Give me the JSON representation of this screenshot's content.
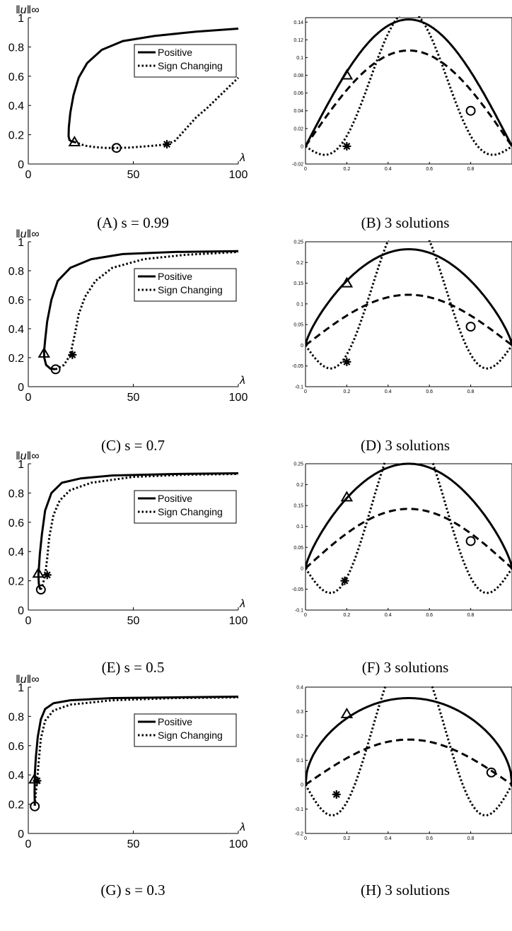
{
  "chart_data": [
    {
      "type": "line",
      "caption": "(A) s = 0.99",
      "ylabel": "‖u‖∞",
      "xlabel": "λ",
      "xlim": [
        0,
        100
      ],
      "ylim": [
        0,
        1
      ],
      "xticks": [
        "0",
        "50",
        "100"
      ],
      "yticks": [
        "0",
        "0.2",
        "0.4",
        "0.6",
        "0.8",
        "1"
      ],
      "legend": {
        "placement": "top-right",
        "entries": [
          "Positive",
          "Sign Changing"
        ]
      },
      "series": [
        {
          "name": "Positive",
          "style": "solid",
          "x": [
            100,
            80,
            60,
            45,
            35,
            28,
            24,
            21.5,
            20,
            19.3,
            19.2,
            19.6,
            20.4,
            22
          ],
          "y": [
            0.925,
            0.905,
            0.875,
            0.84,
            0.78,
            0.69,
            0.59,
            0.47,
            0.35,
            0.25,
            0.19,
            0.165,
            0.155,
            0.15
          ]
        },
        {
          "name": "Sign Changing",
          "style": "dotted",
          "x": [
            22,
            27,
            32,
            37,
            42,
            48,
            55,
            62,
            66,
            70,
            75,
            80,
            85,
            90,
            95,
            100
          ],
          "y": [
            0.15,
            0.125,
            0.115,
            0.11,
            0.11,
            0.112,
            0.12,
            0.128,
            0.135,
            0.16,
            0.24,
            0.32,
            0.38,
            0.45,
            0.52,
            0.59
          ]
        }
      ],
      "markers": [
        {
          "symbol": "triangle",
          "x": 22,
          "y": 0.15
        },
        {
          "symbol": "circle",
          "x": 42,
          "y": 0.11
        },
        {
          "symbol": "star",
          "x": 66,
          "y": 0.135
        }
      ]
    },
    {
      "type": "line",
      "caption": "(B) 3 solutions",
      "xlim": [
        0,
        1
      ],
      "ylim": [
        -0.02,
        0.145
      ],
      "xticks": [
        "0",
        "0.2",
        "0.4",
        "0.6",
        "0.8"
      ],
      "yticks": [
        "-0.02",
        "0",
        "0.02",
        "0.04",
        "0.06",
        "0.08",
        "0.1",
        "0.12",
        "0.14"
      ],
      "series": [
        {
          "style": "solid",
          "amp": 0.143,
          "shape": "positive"
        },
        {
          "style": "dashed",
          "amp": 0.108,
          "shape": "positive"
        },
        {
          "style": "dotted",
          "amp": 0.153,
          "offset": -0.021,
          "shape": "sign-changing"
        }
      ],
      "markers": [
        {
          "symbol": "triangle",
          "x": 0.2,
          "y": 0.08
        },
        {
          "symbol": "circle",
          "x": 0.8,
          "y": 0.04
        },
        {
          "symbol": "star",
          "x": 0.2,
          "y": 0.0
        }
      ]
    },
    {
      "type": "line",
      "caption": "(C) s = 0.7",
      "ylabel": "‖u‖∞",
      "xlabel": "λ",
      "xlim": [
        0,
        100
      ],
      "ylim": [
        0,
        1
      ],
      "xticks": [
        "0",
        "50",
        "100"
      ],
      "yticks": [
        "0",
        "0.2",
        "0.4",
        "0.6",
        "0.8",
        "1"
      ],
      "legend": {
        "placement": "top-right",
        "entries": [
          "Positive",
          "Sign Changing"
        ]
      },
      "series": [
        {
          "name": "Positive",
          "style": "solid",
          "x": [
            100,
            70,
            45,
            30,
            20,
            14,
            11,
            9,
            8,
            7.5,
            7.6,
            8.5,
            10.5,
            13
          ],
          "y": [
            0.935,
            0.93,
            0.915,
            0.88,
            0.82,
            0.73,
            0.6,
            0.45,
            0.32,
            0.24,
            0.2,
            0.15,
            0.125,
            0.12
          ]
        },
        {
          "name": "Sign Changing",
          "style": "dotted",
          "x": [
            13,
            17,
            20,
            22,
            24,
            27,
            32,
            40,
            55,
            75,
            100
          ],
          "y": [
            0.12,
            0.15,
            0.22,
            0.35,
            0.5,
            0.62,
            0.73,
            0.82,
            0.88,
            0.91,
            0.93
          ]
        }
      ],
      "markers": [
        {
          "symbol": "triangle",
          "x": 7.5,
          "y": 0.23
        },
        {
          "symbol": "circle",
          "x": 13,
          "y": 0.12
        },
        {
          "symbol": "star",
          "x": 21,
          "y": 0.22
        }
      ]
    },
    {
      "type": "line",
      "caption": "(D) 3 solutions",
      "xlim": [
        0,
        1
      ],
      "ylim": [
        -0.1,
        0.25
      ],
      "xticks": [
        "0",
        "0.2",
        "0.4",
        "0.6",
        "0.8"
      ],
      "yticks": [
        "-0.1",
        "-0.05",
        "0",
        "0.05",
        "0.1",
        "0.15",
        "0.2",
        "0.25"
      ],
      "series": [
        {
          "style": "solid",
          "amp": 0.232,
          "shape": "arch"
        },
        {
          "style": "dashed",
          "amp": 0.122,
          "shape": "positive"
        },
        {
          "style": "dotted",
          "amp": 0.318,
          "offset": -0.094,
          "shape": "sign-changing"
        }
      ],
      "markers": [
        {
          "symbol": "triangle",
          "x": 0.2,
          "y": 0.15
        },
        {
          "symbol": "circle",
          "x": 0.8,
          "y": 0.045
        },
        {
          "symbol": "star",
          "x": 0.2,
          "y": -0.04
        }
      ]
    },
    {
      "type": "line",
      "caption": "(E) s = 0.5",
      "ylabel": "‖u‖∞",
      "xlabel": "λ",
      "xlim": [
        0,
        100
      ],
      "ylim": [
        0,
        1
      ],
      "xticks": [
        "0",
        "50",
        "100"
      ],
      "yticks": [
        "0",
        "0.2",
        "0.4",
        "0.6",
        "0.8",
        "1"
      ],
      "legend": {
        "placement": "top-right",
        "entries": [
          "Positive",
          "Sign Changing"
        ]
      },
      "series": [
        {
          "name": "Positive",
          "style": "solid",
          "x": [
            100,
            70,
            40,
            25,
            16,
            11,
            8,
            6.5,
            5.5,
            5,
            4.8,
            5,
            5.5,
            6
          ],
          "y": [
            0.935,
            0.93,
            0.92,
            0.9,
            0.87,
            0.8,
            0.68,
            0.52,
            0.38,
            0.28,
            0.24,
            0.18,
            0.15,
            0.14
          ]
        },
        {
          "name": "Sign Changing",
          "style": "dotted",
          "x": [
            6,
            7,
            8,
            9,
            10,
            12,
            15,
            20,
            30,
            50,
            75,
            100
          ],
          "y": [
            0.14,
            0.18,
            0.24,
            0.35,
            0.5,
            0.65,
            0.75,
            0.82,
            0.87,
            0.91,
            0.925,
            0.93
          ]
        }
      ],
      "markers": [
        {
          "symbol": "triangle",
          "x": 4.8,
          "y": 0.25
        },
        {
          "symbol": "circle",
          "x": 6,
          "y": 0.14
        },
        {
          "symbol": "star",
          "x": 9,
          "y": 0.24
        }
      ]
    },
    {
      "type": "line",
      "caption": "(F) 3 solutions",
      "xlim": [
        0,
        1
      ],
      "ylim": [
        -0.1,
        0.25
      ],
      "xticks": [
        "0",
        "0.2",
        "0.4",
        "0.6",
        "0.8"
      ],
      "yticks": [
        "-0.1",
        "-0.05",
        "0",
        "0.05",
        "0.1",
        "0.15",
        "0.2",
        "0.25"
      ],
      "series": [
        {
          "style": "solid",
          "amp": 0.25,
          "shape": "arch"
        },
        {
          "style": "dashed",
          "amp": 0.142,
          "shape": "positive"
        },
        {
          "style": "dotted",
          "amp": 0.345,
          "offset": -0.1,
          "shape": "sign-changing"
        }
      ],
      "markers": [
        {
          "symbol": "triangle",
          "x": 0.2,
          "y": 0.17
        },
        {
          "symbol": "circle",
          "x": 0.8,
          "y": 0.065
        },
        {
          "symbol": "star",
          "x": 0.19,
          "y": -0.03
        }
      ]
    },
    {
      "type": "line",
      "caption": "(G) s = 0.3",
      "ylabel": "‖u‖∞",
      "xlabel": "λ",
      "xlim": [
        0,
        100
      ],
      "ylim": [
        0,
        1
      ],
      "xticks": [
        "0",
        "50",
        "100"
      ],
      "yticks": [
        "0",
        "0.2",
        "0.4",
        "0.6",
        "0.8",
        "1"
      ],
      "legend": {
        "placement": "top-right",
        "entries": [
          "Positive",
          "Sign Changing"
        ]
      },
      "series": [
        {
          "name": "Positive",
          "style": "solid",
          "x": [
            100,
            70,
            40,
            20,
            12,
            8,
            6,
            4.5,
            3.6,
            3.1,
            3.0,
            3.1
          ],
          "y": [
            0.935,
            0.93,
            0.925,
            0.91,
            0.89,
            0.85,
            0.78,
            0.66,
            0.52,
            0.4,
            0.28,
            0.19
          ]
        },
        {
          "name": "Sign Changing",
          "style": "dotted",
          "x": [
            3.1,
            3.6,
            4.2,
            5,
            6,
            8,
            12,
            20,
            40,
            70,
            100
          ],
          "y": [
            0.19,
            0.28,
            0.36,
            0.5,
            0.65,
            0.77,
            0.84,
            0.88,
            0.91,
            0.925,
            0.93
          ]
        }
      ],
      "markers": [
        {
          "symbol": "triangle",
          "x": 3.0,
          "y": 0.37
        },
        {
          "symbol": "circle",
          "x": 3.1,
          "y": 0.185
        },
        {
          "symbol": "star",
          "x": 4.2,
          "y": 0.36
        }
      ]
    },
    {
      "type": "line",
      "caption": "(H) 3 solutions",
      "xlim": [
        0,
        1
      ],
      "ylim": [
        -0.2,
        0.4
      ],
      "xticks": [
        "0",
        "0.2",
        "0.4",
        "0.6",
        "0.8"
      ],
      "yticks": [
        "-0.2",
        "-0.1",
        "0",
        "0.1",
        "0.2",
        "0.3",
        "0.4"
      ],
      "series": [
        {
          "style": "solid",
          "amp": 0.355,
          "shape": "round"
        },
        {
          "style": "dashed",
          "amp": 0.185,
          "shape": "positive"
        },
        {
          "style": "dotted",
          "amp": 0.555,
          "offset": -0.2,
          "shape": "sign-changing"
        }
      ],
      "markers": [
        {
          "symbol": "triangle",
          "x": 0.2,
          "y": 0.29
        },
        {
          "symbol": "circle",
          "x": 0.9,
          "y": 0.05
        },
        {
          "symbol": "star",
          "x": 0.15,
          "y": -0.04
        }
      ]
    }
  ]
}
